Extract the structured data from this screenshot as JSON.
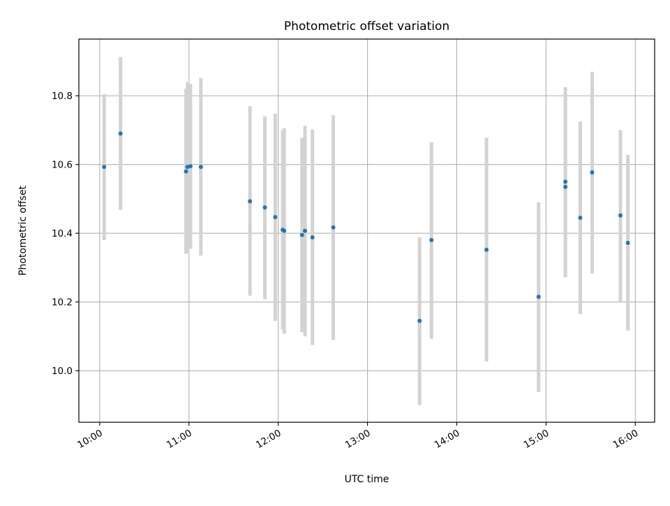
{
  "chart_data": {
    "type": "scatter",
    "title": "Photometric offset variation",
    "xlabel": "UTC time",
    "ylabel": "Photometric offset",
    "x_ticks": [
      "10:00",
      "11:00",
      "12:00",
      "13:00",
      "14:00",
      "15:00",
      "16:00"
    ],
    "y_ticks": [
      "10.0",
      "10.2",
      "10.4",
      "10.6",
      "10.8"
    ],
    "xlim": [
      "09:46",
      "16:13"
    ],
    "ylim": [
      9.85,
      10.965
    ],
    "grid": true,
    "colors": {
      "point": "#1f77b4",
      "errorbar": "#d3d3d3",
      "grid": "#b0b0b0"
    },
    "points": [
      {
        "time": "10:03",
        "y": 10.593,
        "err_low": 10.38,
        "err_high": 10.805
      },
      {
        "time": "10:14",
        "y": 10.69,
        "err_low": 10.468,
        "err_high": 10.913
      },
      {
        "time": "10:58",
        "y": 10.58,
        "err_low": 10.34,
        "err_high": 10.82
      },
      {
        "time": "10:59",
        "y": 10.593,
        "err_low": 10.345,
        "err_high": 10.84
      },
      {
        "time": "11:01",
        "y": 10.595,
        "err_low": 10.355,
        "err_high": 10.835
      },
      {
        "time": "11:08",
        "y": 10.593,
        "err_low": 10.335,
        "err_high": 10.852
      },
      {
        "time": "11:41",
        "y": 10.493,
        "err_low": 10.218,
        "err_high": 10.77
      },
      {
        "time": "11:51",
        "y": 10.475,
        "err_low": 10.208,
        "err_high": 10.74
      },
      {
        "time": "11:58",
        "y": 10.447,
        "err_low": 10.145,
        "err_high": 10.748
      },
      {
        "time": "12:03",
        "y": 10.41,
        "err_low": 10.12,
        "err_high": 10.7
      },
      {
        "time": "12:04",
        "y": 10.407,
        "err_low": 10.108,
        "err_high": 10.705
      },
      {
        "time": "12:16",
        "y": 10.395,
        "err_low": 10.112,
        "err_high": 10.678
      },
      {
        "time": "12:18",
        "y": 10.407,
        "err_low": 10.1,
        "err_high": 10.713
      },
      {
        "time": "12:23",
        "y": 10.388,
        "err_low": 10.075,
        "err_high": 10.702
      },
      {
        "time": "12:37",
        "y": 10.417,
        "err_low": 10.09,
        "err_high": 10.743
      },
      {
        "time": "13:35",
        "y": 10.145,
        "err_low": 9.9,
        "err_high": 10.388
      },
      {
        "time": "13:43",
        "y": 10.38,
        "err_low": 10.093,
        "err_high": 10.665
      },
      {
        "time": "14:20",
        "y": 10.352,
        "err_low": 10.027,
        "err_high": 10.678
      },
      {
        "time": "14:55",
        "y": 10.215,
        "err_low": 9.938,
        "err_high": 10.49
      },
      {
        "time": "15:13",
        "y": 10.535,
        "err_low": 10.272,
        "err_high": 10.8
      },
      {
        "time": "15:13",
        "y": 10.55,
        "err_low": 10.275,
        "err_high": 10.825
      },
      {
        "time": "15:23",
        "y": 10.445,
        "err_low": 10.165,
        "err_high": 10.725
      },
      {
        "time": "15:31",
        "y": 10.577,
        "err_low": 10.283,
        "err_high": 10.87
      },
      {
        "time": "15:50",
        "y": 10.452,
        "err_low": 10.2,
        "err_high": 10.7
      },
      {
        "time": "15:55",
        "y": 10.372,
        "err_low": 10.117,
        "err_high": 10.628
      }
    ]
  }
}
